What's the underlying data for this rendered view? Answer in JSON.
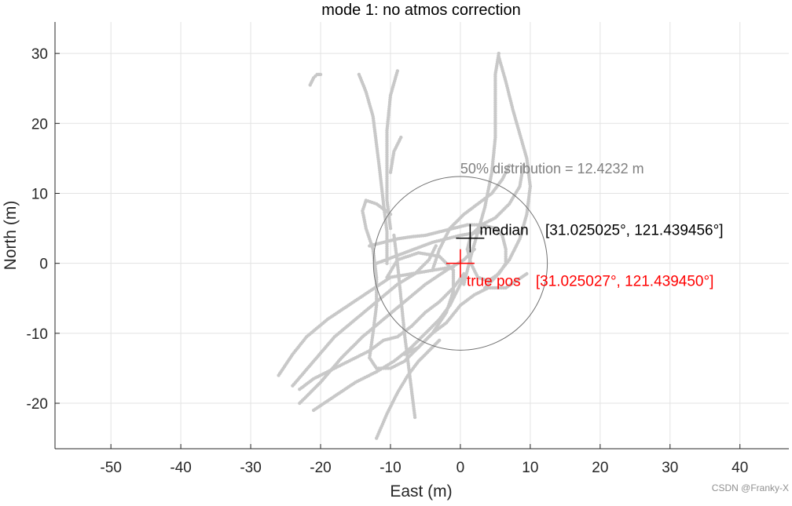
{
  "chart_data": {
    "type": "scatter",
    "title": "mode 1: no atmos correction",
    "xlabel": "East (m)",
    "ylabel": "North (m)",
    "xlim": [
      -58,
      47
    ],
    "ylim": [
      -26.5,
      34.5
    ],
    "xticks": [
      -50,
      -40,
      -30,
      -20,
      -10,
      0,
      10,
      20,
      30,
      40
    ],
    "yticks": [
      -20,
      -10,
      0,
      10,
      20,
      30
    ],
    "xtick_labels": [
      "-50",
      "-40",
      "-30",
      "-20",
      "-10",
      "0",
      "10",
      "20",
      "30",
      "40"
    ],
    "ytick_labels": [
      "-20",
      "-10",
      "0",
      "10",
      "20",
      "30"
    ],
    "grid": true,
    "colors": {
      "points": "#c8c8c8",
      "circle": "#707070",
      "median": "#000000",
      "true_pos": "#ff0000",
      "circle_label": "#808080"
    },
    "circle": {
      "center": [
        0,
        0
      ],
      "radius": 12.4232,
      "label": "50% distribution = 12.4232 m"
    },
    "median": {
      "x": 1.4,
      "y": 3.6,
      "name": "median",
      "coords": "[31.025025°, 121.439456°]"
    },
    "true_pos": {
      "x": 0,
      "y": 0,
      "name": "true pos",
      "coords": "[31.025027°, 121.439450°]"
    },
    "tracks": [
      [
        [
          -21.5,
          25.5
        ],
        [
          -21.0,
          26.5
        ],
        [
          -20.5,
          27.0
        ],
        [
          -20.0,
          27.0
        ]
      ],
      [
        [
          -14.5,
          27.0
        ],
        [
          -13.5,
          24.5
        ],
        [
          -12.5,
          21.0
        ],
        [
          -12.0,
          17.0
        ],
        [
          -11.5,
          13.0
        ],
        [
          -11.0,
          8.5
        ],
        [
          -10.5,
          4.5
        ],
        [
          -10.5,
          0.0
        ]
      ],
      [
        [
          -9.0,
          27.5
        ],
        [
          -10.0,
          24.0
        ],
        [
          -10.5,
          19.0
        ],
        [
          -10.5,
          14.0
        ],
        [
          -10.5,
          9.0
        ],
        [
          -10.0,
          5.0
        ]
      ],
      [
        [
          -10.0,
          13.0
        ],
        [
          -9.5,
          16.0
        ],
        [
          -8.5,
          18.0
        ]
      ],
      [
        [
          -10.0,
          7.0
        ],
        [
          -12.0,
          8.5
        ],
        [
          -13.5,
          9.0
        ],
        [
          -14.0,
          7.5
        ],
        [
          -13.5,
          5.0
        ],
        [
          -12.5,
          2.0
        ],
        [
          -12.0,
          -2.0
        ],
        [
          -12.0,
          -6.0
        ],
        [
          -12.5,
          -10.0
        ],
        [
          -13.0,
          -13.5
        ],
        [
          -12.0,
          -15.0
        ],
        [
          -10.0,
          -15.0
        ],
        [
          -8.0,
          -14.0
        ],
        [
          -6.0,
          -12.0
        ],
        [
          -4.0,
          -10.0
        ],
        [
          -2.0,
          -8.5
        ],
        [
          0.0,
          -6.0
        ],
        [
          2.0,
          -4.5
        ],
        [
          4.0,
          -3.5
        ],
        [
          6.5,
          -3.5
        ],
        [
          8.0,
          -2.5
        ],
        [
          9.5,
          -1.5
        ]
      ],
      [
        [
          -23.0,
          -18.0
        ],
        [
          -21.0,
          -16.5
        ],
        [
          -19.0,
          -15.5
        ],
        [
          -17.0,
          -14.5
        ],
        [
          -15.0,
          -13.5
        ],
        [
          -13.0,
          -12.5
        ],
        [
          -11.0,
          -11.0
        ],
        [
          -9.0,
          -10.5
        ],
        [
          -7.0,
          -9.0
        ],
        [
          -5.0,
          -7.0
        ],
        [
          -3.0,
          -5.5
        ],
        [
          -1.0,
          -3.5
        ],
        [
          0.5,
          -1.5
        ]
      ],
      [
        [
          -24.0,
          -17.5
        ],
        [
          -21.0,
          -14.0
        ],
        [
          -18.0,
          -10.5
        ],
        [
          -15.0,
          -8.0
        ],
        [
          -12.0,
          -5.5
        ],
        [
          -9.0,
          -3.0
        ],
        [
          -6.5,
          -1.5
        ],
        [
          -4.5,
          0.5
        ],
        [
          -3.5,
          2.5
        ]
      ],
      [
        [
          -23.0,
          -20.0
        ],
        [
          -20.0,
          -17.0
        ],
        [
          -17.0,
          -13.5
        ],
        [
          -14.0,
          -10.5
        ],
        [
          -11.0,
          -8.0
        ],
        [
          -8.0,
          -5.5
        ],
        [
          -5.0,
          -3.0
        ],
        [
          -2.0,
          -1.0
        ],
        [
          0.5,
          0.5
        ],
        [
          2.0,
          2.0
        ]
      ],
      [
        [
          -21.0,
          -21.0
        ],
        [
          -18.0,
          -19.0
        ],
        [
          -15.0,
          -17.0
        ],
        [
          -12.0,
          -15.5
        ],
        [
          -9.5,
          -14.0
        ],
        [
          -7.0,
          -12.0
        ],
        [
          -5.0,
          -10.0
        ],
        [
          -3.0,
          -8.0
        ],
        [
          -1.5,
          -6.0
        ],
        [
          -0.5,
          -4.0
        ],
        [
          0.5,
          -2.0
        ]
      ],
      [
        [
          -12.0,
          -25.0
        ],
        [
          -10.5,
          -21.5
        ],
        [
          -9.0,
          -18.5
        ],
        [
          -7.5,
          -16.0
        ],
        [
          -6.0,
          -14.0
        ],
        [
          -4.5,
          -12.5
        ],
        [
          -3.0,
          -11.0
        ]
      ],
      [
        [
          -6.5,
          -22.0
        ],
        [
          -7.0,
          -18.0
        ],
        [
          -7.5,
          -14.0
        ],
        [
          -8.0,
          -10.0
        ],
        [
          -8.5,
          -5.0
        ],
        [
          -9.0,
          0.0
        ],
        [
          -9.5,
          4.0
        ]
      ],
      [
        [
          -26.0,
          -16.0
        ],
        [
          -24.0,
          -13.0
        ],
        [
          -22.0,
          -10.5
        ],
        [
          -19.0,
          -8.0
        ],
        [
          -16.0,
          -6.0
        ],
        [
          -13.0,
          -4.0
        ],
        [
          -10.0,
          -2.0
        ],
        [
          -7.0,
          -1.5
        ],
        [
          -4.0,
          -1.0
        ],
        [
          -1.0,
          -0.5
        ]
      ],
      [
        [
          -13.0,
          2.5
        ],
        [
          -11.0,
          3.0
        ],
        [
          -9.0,
          3.5
        ],
        [
          -7.0,
          3.8
        ],
        [
          -5.0,
          4.0
        ],
        [
          -3.0,
          4.5
        ],
        [
          -1.0,
          5.0
        ],
        [
          1.0,
          5.5
        ],
        [
          3.0,
          5.5
        ],
        [
          5.0,
          5.0
        ],
        [
          6.0,
          4.0
        ],
        [
          6.5,
          2.0
        ],
        [
          6.5,
          0.0
        ],
        [
          5.5,
          -1.5
        ],
        [
          4.0,
          -2.5
        ],
        [
          2.5,
          -2.0
        ],
        [
          1.5,
          0.0
        ],
        [
          1.0,
          2.0
        ],
        [
          1.5,
          4.0
        ],
        [
          3.0,
          5.5
        ],
        [
          5.0,
          6.5
        ],
        [
          7.0,
          8.5
        ],
        [
          8.5,
          11.0
        ],
        [
          9.0,
          14.0
        ]
      ],
      [
        [
          0.5,
          -3.0
        ],
        [
          1.5,
          1.0
        ],
        [
          2.5,
          4.5
        ],
        [
          3.5,
          8.0
        ],
        [
          4.5,
          13.0
        ],
        [
          5.0,
          18.0
        ],
        [
          5.0,
          23.0
        ],
        [
          5.0,
          27.0
        ],
        [
          5.5,
          30.0
        ]
      ],
      [
        [
          5.5,
          29.5
        ],
        [
          6.5,
          26.0
        ],
        [
          7.5,
          22.0
        ],
        [
          8.5,
          18.5
        ],
        [
          9.5,
          15.0
        ],
        [
          10.0,
          11.0
        ],
        [
          9.5,
          7.0
        ],
        [
          8.5,
          3.5
        ],
        [
          7.0,
          0.5
        ],
        [
          5.0,
          -2.0
        ],
        [
          3.5,
          -3.5
        ]
      ],
      [
        [
          -4.0,
          -1.0
        ],
        [
          -3.0,
          2.0
        ],
        [
          -1.5,
          5.0
        ],
        [
          0.5,
          7.0
        ],
        [
          2.5,
          8.5
        ],
        [
          4.5,
          10.0
        ],
        [
          6.0,
          12.0
        ],
        [
          7.0,
          14.0
        ]
      ],
      [
        [
          -12.0,
          0.0
        ],
        [
          -8.0,
          1.5
        ],
        [
          -4.0,
          3.0
        ],
        [
          0.0,
          4.0
        ],
        [
          3.0,
          4.5
        ]
      ],
      [
        [
          -10.5,
          -2.0
        ],
        [
          -9.0,
          0.5
        ],
        [
          -6.0,
          1.5
        ],
        [
          -3.0,
          1.0
        ],
        [
          -1.0,
          -1.0
        ],
        [
          -1.0,
          -4.0
        ],
        [
          -2.0,
          -7.0
        ],
        [
          -4.0,
          -10.0
        ],
        [
          -6.0,
          -12.0
        ],
        [
          -8.0,
          -13.0
        ]
      ]
    ]
  },
  "watermark": "CSDN @Franky-X"
}
